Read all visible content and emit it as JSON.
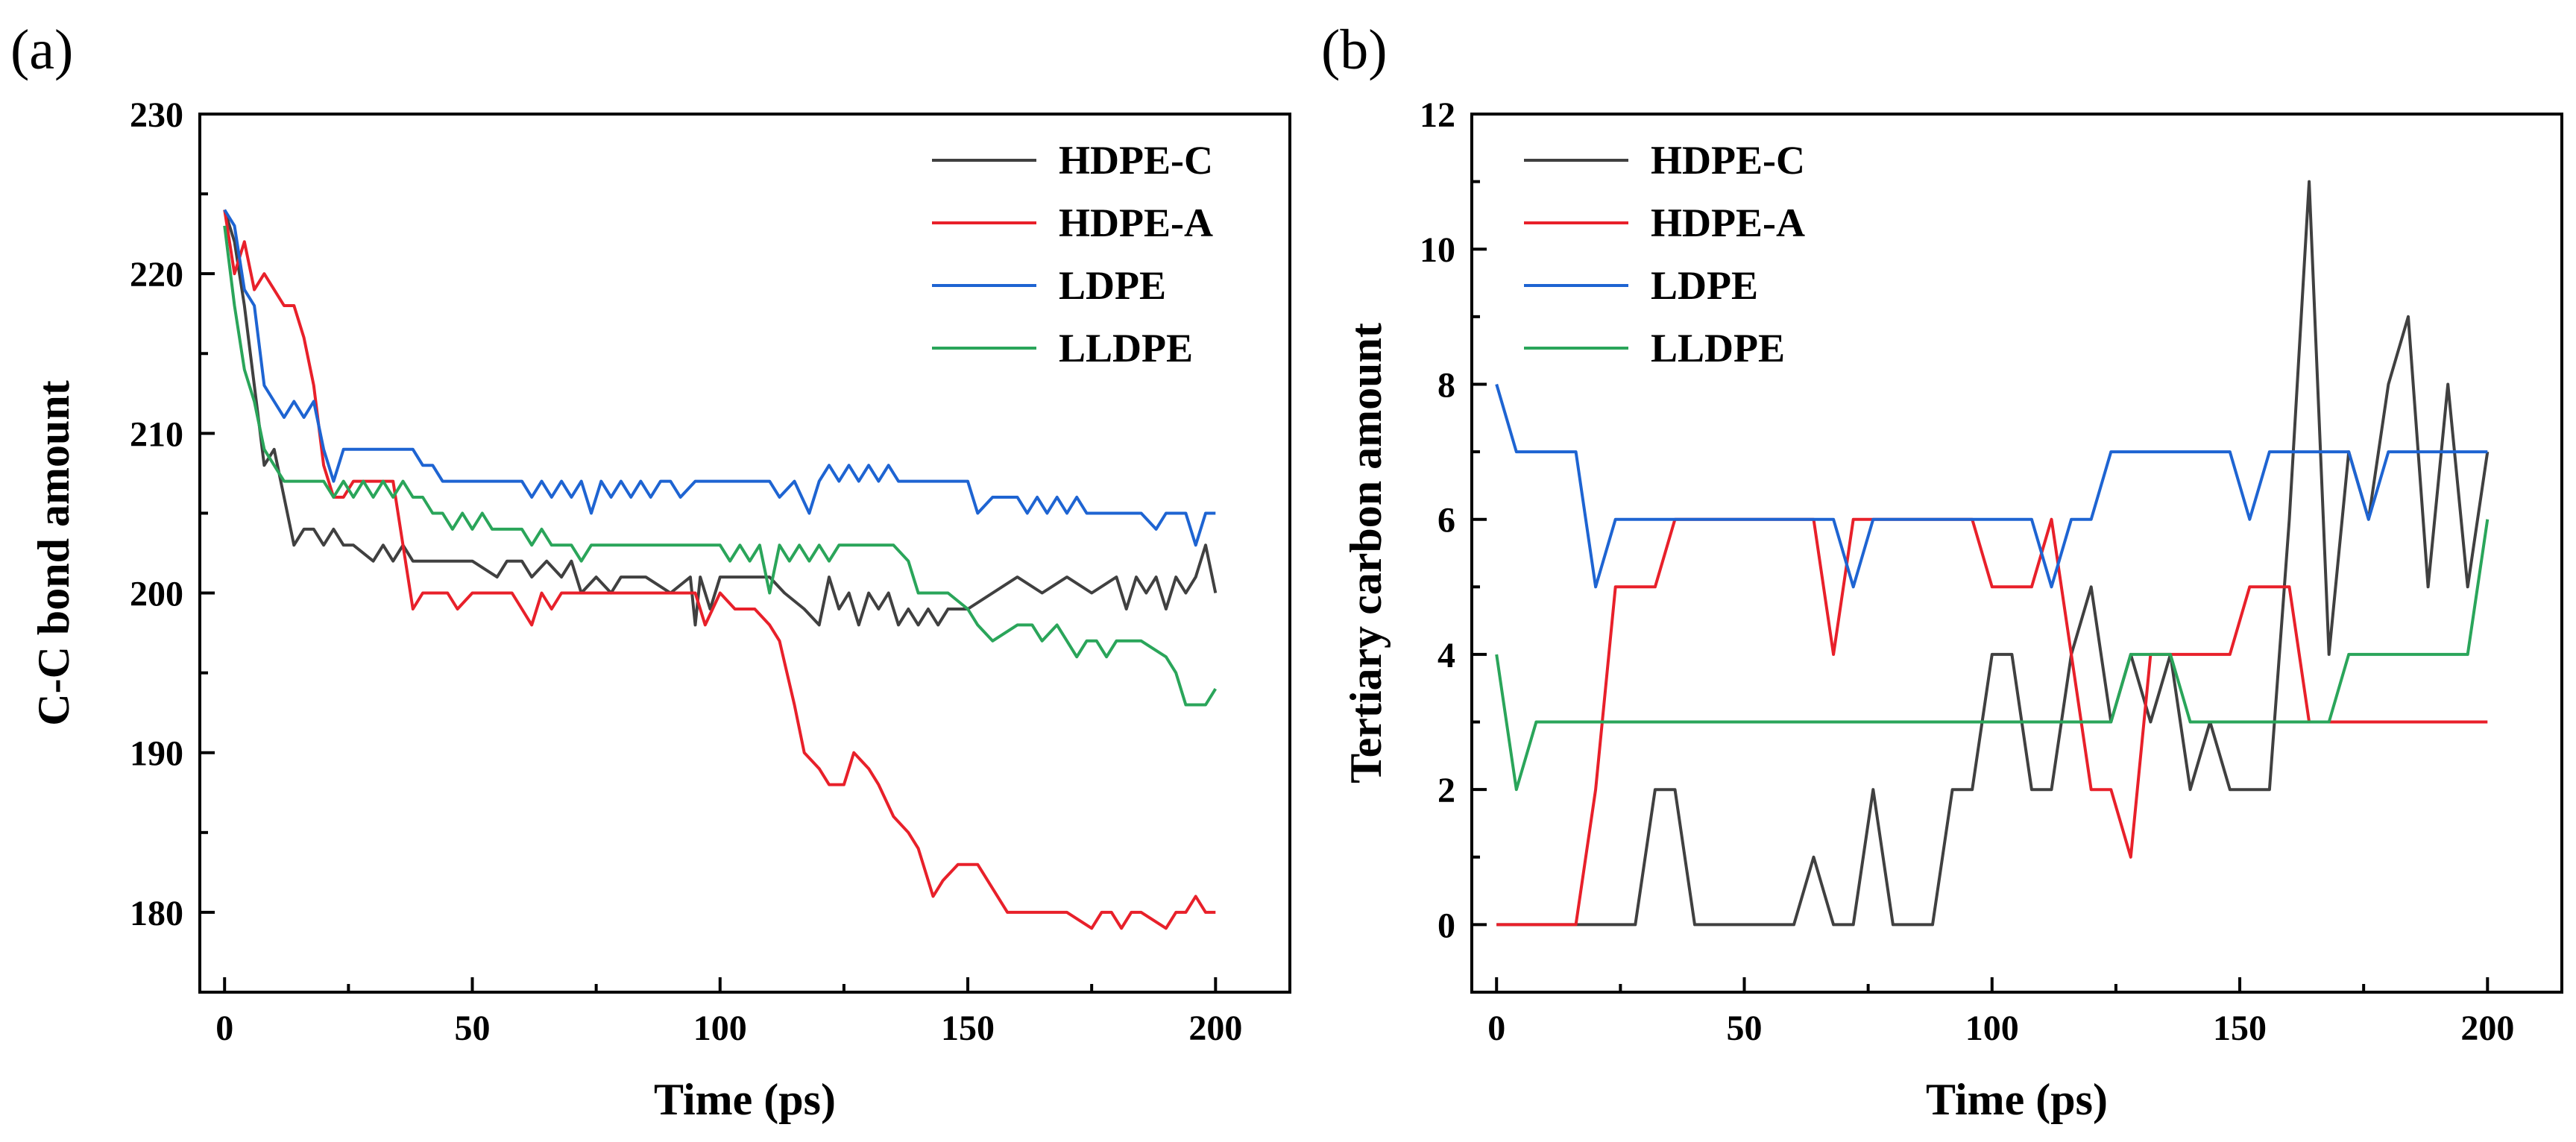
{
  "chart_data": [
    {
      "type": "line",
      "panel_label": "(a)",
      "xlabel": "Time (ps)",
      "ylabel": "C-C bond amount",
      "xlim": [
        -5,
        215
      ],
      "ylim": [
        175,
        230
      ],
      "xticks": [
        0,
        50,
        100,
        150,
        200
      ],
      "yticks": [
        180,
        190,
        200,
        210,
        220,
        230
      ],
      "legend_position": "top-right",
      "grid": false,
      "series": [
        {
          "name": "HDPE-C",
          "color": "#404040",
          "x": [
            0,
            2,
            4,
            6,
            8,
            10,
            12,
            14,
            16,
            18,
            20,
            22,
            24,
            26,
            30,
            32,
            34,
            36,
            38,
            40,
            50,
            55,
            57,
            60,
            62,
            65,
            68,
            70,
            72,
            75,
            78,
            80,
            85,
            90,
            94,
            95,
            96,
            98,
            100,
            110,
            113,
            117,
            120,
            122,
            124,
            126,
            128,
            130,
            132,
            134,
            136,
            138,
            140,
            142,
            144,
            146,
            150,
            160,
            165,
            170,
            175,
            180,
            182,
            184,
            186,
            188,
            190,
            192,
            194,
            196,
            198,
            200
          ],
          "y": [
            224,
            222,
            218,
            213,
            208,
            209,
            206,
            203,
            204,
            204,
            203,
            204,
            203,
            203,
            202,
            203,
            202,
            203,
            202,
            202,
            202,
            201,
            202,
            202,
            201,
            202,
            201,
            202,
            200,
            201,
            200,
            201,
            201,
            200,
            201,
            198,
            201,
            199,
            201,
            201,
            200,
            199,
            198,
            201,
            199,
            200,
            198,
            200,
            199,
            200,
            198,
            199,
            198,
            199,
            198,
            199,
            199,
            201,
            200,
            201,
            200,
            201,
            199,
            201,
            200,
            201,
            199,
            201,
            200,
            201,
            203,
            200
          ]
        },
        {
          "name": "HDPE-A",
          "color": "#e8202a",
          "x": [
            0,
            2,
            4,
            6,
            8,
            10,
            12,
            14,
            16,
            18,
            20,
            22,
            24,
            26,
            30,
            34,
            36,
            38,
            40,
            42,
            45,
            47,
            50,
            55,
            58,
            60,
            62,
            64,
            66,
            68,
            70,
            72,
            74,
            80,
            90,
            95,
            97,
            100,
            103,
            107,
            110,
            112,
            115,
            117,
            120,
            122,
            125,
            127,
            130,
            132,
            135,
            138,
            140,
            143,
            145,
            148,
            150,
            152,
            158,
            160,
            162,
            170,
            175,
            177,
            179,
            181,
            183,
            185,
            190,
            192,
            194,
            196,
            198,
            200
          ],
          "y": [
            224,
            220,
            222,
            219,
            220,
            219,
            218,
            218,
            216,
            213,
            208,
            206,
            206,
            207,
            207,
            207,
            203,
            199,
            200,
            200,
            200,
            199,
            200,
            200,
            200,
            199,
            198,
            200,
            199,
            200,
            200,
            200,
            200,
            200,
            200,
            200,
            198,
            200,
            199,
            199,
            198,
            197,
            193,
            190,
            189,
            188,
            188,
            190,
            189,
            188,
            186,
            185,
            184,
            181,
            182,
            183,
            183,
            183,
            180,
            180,
            180,
            180,
            179,
            180,
            180,
            179,
            180,
            180,
            179,
            180,
            180,
            181,
            180,
            180
          ]
        },
        {
          "name": "LDPE",
          "color": "#1e64d2",
          "x": [
            0,
            2,
            4,
            6,
            8,
            10,
            12,
            14,
            16,
            18,
            20,
            22,
            24,
            30,
            36,
            38,
            40,
            42,
            44,
            46,
            50,
            60,
            62,
            64,
            66,
            68,
            70,
            72,
            74,
            76,
            78,
            80,
            82,
            84,
            86,
            88,
            90,
            92,
            95,
            100,
            110,
            112,
            115,
            118,
            120,
            122,
            124,
            126,
            128,
            130,
            132,
            134,
            136,
            140,
            150,
            152,
            155,
            160,
            162,
            164,
            166,
            168,
            170,
            172,
            174,
            176,
            180,
            185,
            188,
            190,
            192,
            194,
            196,
            198,
            200
          ],
          "y": [
            224,
            223,
            219,
            218,
            213,
            212,
            211,
            212,
            211,
            212,
            209,
            207,
            209,
            209,
            209,
            209,
            208,
            208,
            207,
            207,
            207,
            207,
            206,
            207,
            206,
            207,
            206,
            207,
            205,
            207,
            206,
            207,
            206,
            207,
            206,
            207,
            207,
            206,
            207,
            207,
            207,
            206,
            207,
            205,
            207,
            208,
            207,
            208,
            207,
            208,
            207,
            208,
            207,
            207,
            207,
            205,
            206,
            206,
            205,
            206,
            205,
            206,
            205,
            206,
            205,
            205,
            205,
            205,
            204,
            205,
            205,
            205,
            203,
            205,
            205
          ]
        },
        {
          "name": "LLDPE",
          "color": "#2aa55a",
          "x": [
            0,
            2,
            4,
            6,
            8,
            10,
            12,
            14,
            16,
            18,
            20,
            22,
            24,
            26,
            28,
            30,
            32,
            34,
            36,
            38,
            40,
            42,
            44,
            46,
            48,
            50,
            52,
            54,
            56,
            58,
            60,
            62,
            64,
            66,
            68,
            70,
            72,
            74,
            76,
            78,
            80,
            90,
            95,
            100,
            102,
            104,
            106,
            108,
            110,
            112,
            114,
            116,
            118,
            120,
            122,
            124,
            126,
            128,
            130,
            135,
            138,
            140,
            142,
            146,
            150,
            152,
            155,
            160,
            163,
            165,
            168,
            170,
            172,
            174,
            176,
            178,
            180,
            185,
            190,
            192,
            194,
            196,
            198,
            200
          ],
          "y": [
            223,
            218,
            214,
            212,
            209,
            208,
            207,
            207,
            207,
            207,
            207,
            206,
            207,
            206,
            207,
            206,
            207,
            206,
            207,
            206,
            206,
            205,
            205,
            204,
            205,
            204,
            205,
            204,
            204,
            204,
            204,
            203,
            204,
            203,
            203,
            203,
            202,
            203,
            203,
            203,
            203,
            203,
            203,
            203,
            202,
            203,
            202,
            203,
            200,
            203,
            202,
            203,
            202,
            203,
            202,
            203,
            203,
            203,
            203,
            203,
            202,
            200,
            200,
            200,
            199,
            198,
            197,
            198,
            198,
            197,
            198,
            197,
            196,
            197,
            197,
            196,
            197,
            197,
            196,
            195,
            193,
            193,
            193,
            194
          ]
        }
      ]
    },
    {
      "type": "line",
      "panel_label": "(b)",
      "xlabel": "Time (ps)",
      "ylabel": "Tertiary carbon amount",
      "xlim": [
        -5,
        215
      ],
      "ylim": [
        -1,
        12
      ],
      "xticks": [
        0,
        50,
        100,
        150,
        200
      ],
      "yticks": [
        0,
        2,
        4,
        6,
        8,
        10,
        12
      ],
      "legend_position": "top-left",
      "grid": false,
      "series": [
        {
          "name": "HDPE-C",
          "color": "#404040",
          "x": [
            0,
            28,
            32,
            36,
            40,
            60,
            64,
            68,
            72,
            76,
            80,
            88,
            92,
            96,
            100,
            104,
            108,
            112,
            116,
            120,
            124,
            128,
            132,
            136,
            140,
            144,
            148,
            152,
            156,
            160,
            164,
            168,
            172,
            176,
            180,
            184,
            188,
            192,
            196,
            200
          ],
          "y": [
            0,
            0,
            2,
            2,
            0,
            0,
            1,
            0,
            0,
            2,
            0,
            0,
            2,
            2,
            4,
            4,
            2,
            2,
            4,
            5,
            3,
            4,
            3,
            4,
            2,
            3,
            2,
            2,
            2,
            6,
            11,
            4,
            7,
            6,
            8,
            9,
            5,
            8,
            5,
            7
          ]
        },
        {
          "name": "HDPE-A",
          "color": "#e8202a",
          "x": [
            0,
            16,
            20,
            24,
            28,
            32,
            36,
            40,
            64,
            68,
            72,
            76,
            96,
            100,
            104,
            108,
            112,
            116,
            120,
            124,
            128,
            132,
            136,
            140,
            148,
            152,
            156,
            160,
            164,
            168,
            200
          ],
          "y": [
            0,
            0,
            2,
            5,
            5,
            5,
            6,
            6,
            6,
            4,
            6,
            6,
            6,
            5,
            5,
            5,
            6,
            4,
            2,
            2,
            1,
            4,
            4,
            4,
            4,
            5,
            5,
            5,
            3,
            3,
            3
          ]
        },
        {
          "name": "LDPE",
          "color": "#1e64d2",
          "x": [
            0,
            4,
            8,
            16,
            20,
            24,
            40,
            68,
            72,
            76,
            104,
            108,
            112,
            116,
            120,
            124,
            148,
            152,
            156,
            168,
            172,
            176,
            180,
            200
          ],
          "y": [
            8,
            7,
            7,
            7,
            5,
            6,
            6,
            6,
            5,
            6,
            6,
            6,
            5,
            6,
            6,
            7,
            7,
            6,
            7,
            7,
            7,
            6,
            7,
            7
          ]
        },
        {
          "name": "LLDPE",
          "color": "#2aa55a",
          "x": [
            0,
            4,
            8,
            12,
            120,
            124,
            128,
            132,
            136,
            140,
            144,
            148,
            152,
            156,
            168,
            172,
            176,
            196,
            200
          ],
          "y": [
            4,
            2,
            3,
            3,
            3,
            3,
            4,
            4,
            4,
            3,
            3,
            3,
            3,
            3,
            3,
            4,
            4,
            4,
            6
          ]
        }
      ]
    }
  ]
}
